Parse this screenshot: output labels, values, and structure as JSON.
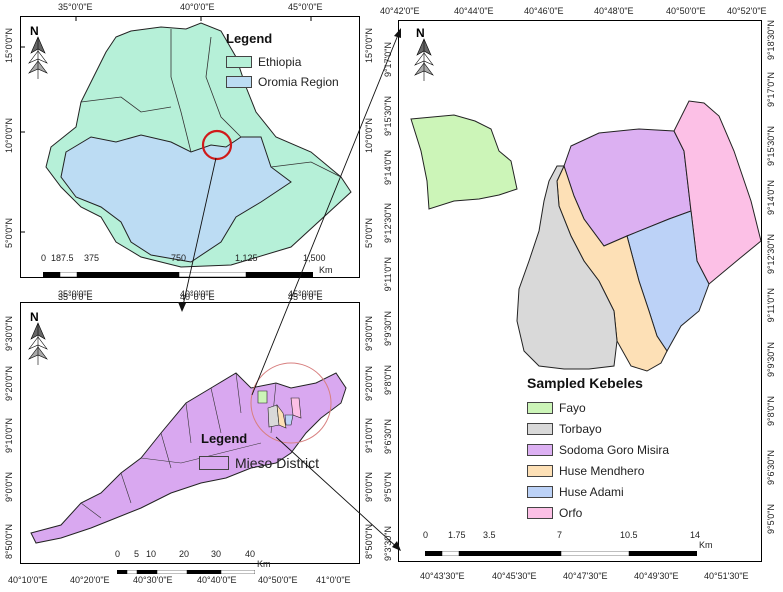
{
  "top_left_map": {
    "top_ticks": [
      "35°0'0\"E",
      "40°0'0\"E",
      "45°0'0\"E"
    ],
    "bottom_ticks": [
      "35°0'0\"E",
      "40°0'0\"E",
      "45°0'0\"E"
    ],
    "left_ticks": [
      "15°0'0\"N",
      "10°0'0\"N",
      "5°0'0\"N"
    ],
    "right_ticks": [
      "15°0'0\"N",
      "10°0'0\"N",
      "5°0'0\"N"
    ],
    "legend": {
      "title": "Legend",
      "items": [
        {
          "label": "Ethiopia",
          "color": "#b6f0d8"
        },
        {
          "label": "Oromia Region",
          "color": "#bcdcf3"
        }
      ]
    },
    "scale": {
      "labels": [
        "0",
        "187.5",
        "375",
        "750",
        "1,125",
        "1,500"
      ],
      "unit": "Km"
    }
  },
  "bottom_left_map": {
    "top_ticks": [
      "35°0'0\"E",
      "40°0'0\"E",
      "45°0'0\"E"
    ],
    "bottom_ticks": [
      "40°10'0\"E",
      "40°20'0\"E",
      "40°30'0\"E",
      "40°40'0\"E",
      "40°50'0\"E",
      "41°0'0\"E"
    ],
    "left_ticks": [
      "9°30'0\"N",
      "9°20'0\"N",
      "9°10'0\"N",
      "9°0'0\"N",
      "8°50'0\"N"
    ],
    "right_ticks": [
      "9°30'0\"N",
      "9°20'0\"N",
      "9°10'0\"N",
      "9°0'0\"N",
      "8°50'0\"N"
    ],
    "legend": {
      "title": "Legend",
      "items": [
        {
          "label": "Mieso District",
          "color": "#d9a8f0"
        }
      ]
    },
    "scale": {
      "labels": [
        "0",
        "5",
        "10",
        "20",
        "30",
        "40"
      ],
      "unit": "Km"
    }
  },
  "right_map": {
    "top_ticks": [
      "40°42'0\"E",
      "40°44'0\"E",
      "40°46'0\"E",
      "40°48'0\"E",
      "40°50'0\"E",
      "40°52'0\"E"
    ],
    "bottom_ticks": [
      "40°43'30\"E",
      "40°45'30\"E",
      "40°47'30\"E",
      "40°49'30\"E",
      "40°51'30\"E"
    ],
    "left_ticks": [
      "9°17'0\"N",
      "9°15'30\"N",
      "9°14'0\"N",
      "9°12'30\"N",
      "9°11'0\"N",
      "9°9'30\"N",
      "9°8'0\"N",
      "9°6'30\"N",
      "9°5'0\"N",
      "9°3'30\"N"
    ],
    "right_ticks": [
      "9°18'30\"N",
      "9°17'0\"N",
      "9°15'30\"N",
      "9°14'0\"N",
      "9°12'30\"N",
      "9°11'0\"N",
      "9°9'30\"N",
      "9°8'0\"N",
      "9°6'30\"N",
      "9°5'0\"N"
    ],
    "legend": {
      "title": "Sampled Kebeles",
      "items": [
        {
          "label": "Fayo",
          "color": "#ccf5b8"
        },
        {
          "label": "Torbayo",
          "color": "#d9d9d9"
        },
        {
          "label": "Sodoma Goro Misira",
          "color": "#dcb0f2"
        },
        {
          "label": "Huse Mendhero",
          "color": "#fde0b6"
        },
        {
          "label": "Huse Adami",
          "color": "#bcd2f7"
        },
        {
          "label": "Orfo",
          "color": "#fcc0e6"
        }
      ]
    },
    "scale": {
      "labels": [
        "0",
        "1.75",
        "3.5",
        "7",
        "10.5",
        "14"
      ],
      "unit": "Km"
    }
  }
}
